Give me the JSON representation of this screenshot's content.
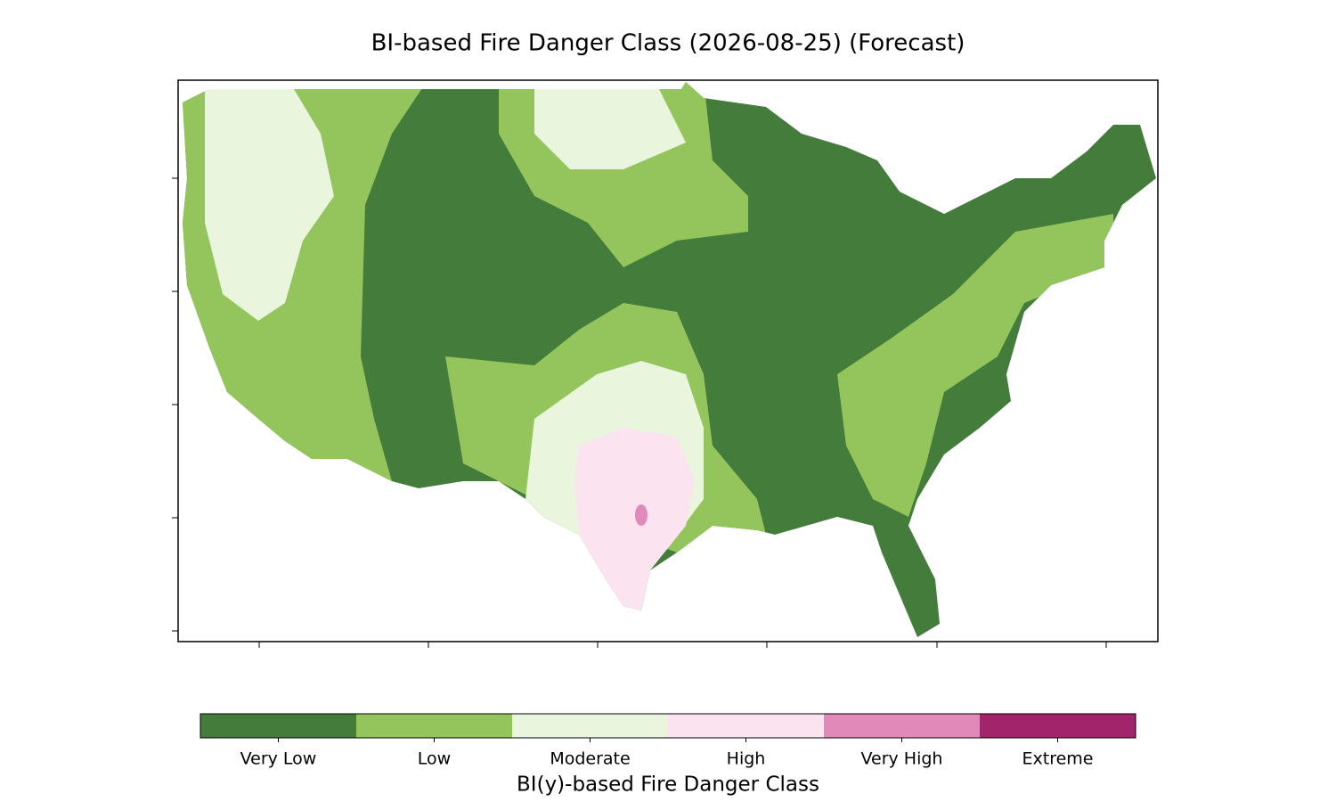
{
  "title": "BI-based Fire Danger Class (2026-08-25) (Forecast)",
  "colorbar": {
    "title": "BI(y)-based Fire Danger Class",
    "classes": [
      {
        "label": "Very Low",
        "color": "#447c3c"
      },
      {
        "label": "Low",
        "color": "#93c55c"
      },
      {
        "label": "Moderate",
        "color": "#e9f5dc"
      },
      {
        "label": "High",
        "color": "#fbe3ef"
      },
      {
        "label": "Very High",
        "color": "#e18ab9"
      },
      {
        "label": "Extreme",
        "color": "#a2246b"
      }
    ]
  }
}
